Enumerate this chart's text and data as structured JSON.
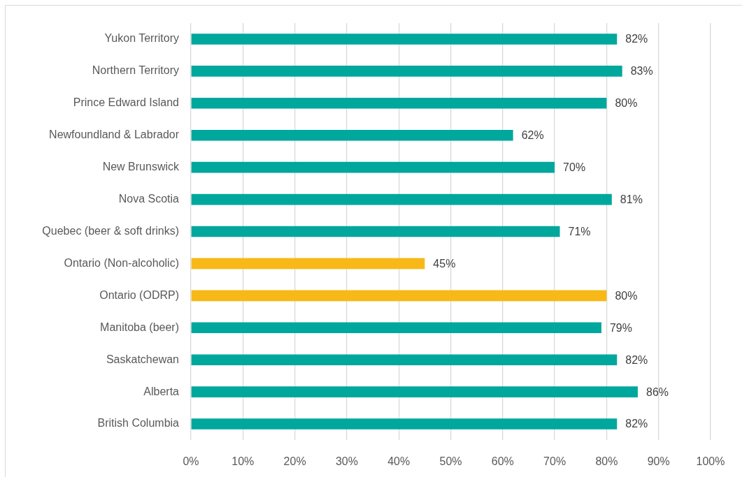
{
  "chart_data": {
    "type": "bar",
    "orientation": "horizontal",
    "categories": [
      "Yukon Territory",
      "Northern Territory",
      "Prince Edward Island",
      "Newfoundland & Labrador",
      "New Brunswick",
      "Nova Scotia",
      "Quebec (beer & soft drinks)",
      "Ontario (Non-alcoholic)",
      "Ontario (ODRP)",
      "Manitoba (beer)",
      "Saskatchewan",
      "Alberta",
      "British Columbia"
    ],
    "values": [
      82,
      83,
      80,
      62,
      70,
      81,
      71,
      45,
      80,
      79,
      82,
      86,
      82
    ],
    "colors": [
      "#00a79d",
      "#00a79d",
      "#00a79d",
      "#00a79d",
      "#00a79d",
      "#00a79d",
      "#00a79d",
      "#f8b817",
      "#f8b817",
      "#00a79d",
      "#00a79d",
      "#00a79d",
      "#00a79d"
    ],
    "value_labels": [
      "82%",
      "83%",
      "80%",
      "62%",
      "70%",
      "81%",
      "71%",
      "45%",
      "80%",
      "79%",
      "82%",
      "86%",
      "82%"
    ],
    "xlim": [
      0,
      100
    ],
    "xticks": [
      {
        "value": 0,
        "label": "0%"
      },
      {
        "value": 10,
        "label": "10%"
      },
      {
        "value": 20,
        "label": "20%"
      },
      {
        "value": 30,
        "label": "30%"
      },
      {
        "value": 40,
        "label": "40%"
      },
      {
        "value": 50,
        "label": "50%"
      },
      {
        "value": 60,
        "label": "60%"
      },
      {
        "value": 70,
        "label": "70%"
      },
      {
        "value": 80,
        "label": "80%"
      },
      {
        "value": 90,
        "label": "90%"
      },
      {
        "value": 100,
        "label": "100%"
      }
    ],
    "grid": "x"
  }
}
